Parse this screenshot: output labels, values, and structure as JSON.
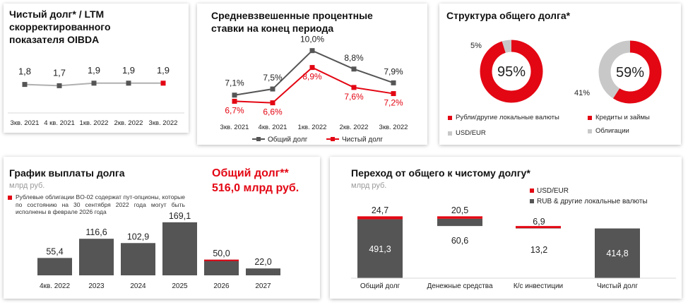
{
  "colors": {
    "gray": "#555555",
    "red": "#e30613",
    "light_gray": "#c8c8c8",
    "line_gray": "#b0b0b0"
  },
  "panel1": {
    "title": "Чистый долг* / LTM скорректированного показателя OIBDA"
  },
  "panel2": {
    "title": "Средневзвешенные процентные ставки на конец периода"
  },
  "panel3": {
    "title": "Структура общего долга*",
    "donut_left": {
      "label": "95%",
      "small": "5%",
      "legend": [
        "Рубли/другие локальные валюты",
        "USD/EUR"
      ]
    },
    "donut_right": {
      "label": "59%",
      "small": "41%",
      "legend": [
        "Кредиты и займы",
        "Облигации"
      ]
    }
  },
  "panel4": {
    "title": "График выплаты долга",
    "unit": "млрд руб.",
    "footnote": "Рублевые облигации BO-02 содержат пут-опционы, которые по состоянию на 30 сентября 2022 года могут быть исполнены в феврале 2026 года",
    "total_line1": "Общий долг**",
    "total_line2": "516,0 млрд руб."
  },
  "panel5": {
    "title": "Переход от общего к чистому долгу*",
    "unit": "млрд руб."
  },
  "chart_data": [
    {
      "type": "line",
      "categories": [
        "3кв. 2021",
        "4 кв. 2021",
        "1кв. 2022",
        "2кв. 2022",
        "3кв. 2022"
      ],
      "series": [
        {
          "values": [
            1.8,
            1.7,
            1.9,
            1.9,
            1.9
          ]
        }
      ],
      "data_labels": [
        "1,8",
        "1,7",
        "1,9",
        "1,9",
        "1,9"
      ],
      "ylim": [
        0,
        5
      ]
    },
    {
      "type": "line",
      "categories": [
        "3кв. 2021",
        "4кв. 2021",
        "1кв. 2022",
        "2кв. 2022",
        "3кв. 2022"
      ],
      "series": [
        {
          "name": "Общий долг",
          "values": [
            7.1,
            7.5,
            10.0,
            8.8,
            7.9
          ],
          "labels": [
            "7,1%",
            "7,5%",
            "10,0%",
            "8,8%",
            "7,9%"
          ],
          "color": "#555555"
        },
        {
          "name": "Чистый долг",
          "values": [
            6.7,
            6.6,
            8.9,
            7.6,
            7.2
          ],
          "labels": [
            "6,7%",
            "6,6%",
            "8,9%",
            "7,6%",
            "7,2%"
          ],
          "color": "#e30613"
        }
      ],
      "ylim": [
        5.8,
        10.4
      ]
    },
    {
      "type": "pie",
      "slices": [
        {
          "label": "Рубли/другие локальные валюты",
          "value": 95,
          "color": "#e30613"
        },
        {
          "label": "USD/EUR",
          "value": 5,
          "color": "#c8c8c8"
        }
      ]
    },
    {
      "type": "pie",
      "slices": [
        {
          "label": "Кредиты и займы",
          "value": 59,
          "color": "#e30613"
        },
        {
          "label": "Облигации",
          "value": 41,
          "color": "#c8c8c8"
        }
      ]
    },
    {
      "type": "bar",
      "categories": [
        "4кв. 2022",
        "2023",
        "2024",
        "2025",
        "2026",
        "2027"
      ],
      "values": [
        55.4,
        116.6,
        102.9,
        169.1,
        50.0,
        22.0
      ],
      "labels": [
        "55,4",
        "116,6",
        "102,9",
        "169,1",
        "50,0",
        "22,0"
      ],
      "highlight_fraction": [
        0,
        0,
        0,
        0,
        0.05,
        0
      ],
      "ylim": [
        0,
        180
      ]
    },
    {
      "type": "bar",
      "categories": [
        "Общий долг",
        "Денежные средства",
        "К/с инвестиции",
        "Чистый долг"
      ],
      "series": [
        {
          "name": "USD/EUR",
          "values": [
            24.7,
            20.5,
            6.9,
            0
          ],
          "labels": [
            "24,7",
            "20,5",
            "6,9",
            ""
          ],
          "color": "#e30613"
        },
        {
          "name": "RUB & другие локальные валюты",
          "values": [
            491.3,
            60.6,
            13.2,
            414.8
          ],
          "labels": [
            "491,3",
            "60,6",
            "13,2",
            "414,8"
          ],
          "color": "#555555"
        }
      ],
      "ylim": [
        0,
        530
      ]
    }
  ]
}
